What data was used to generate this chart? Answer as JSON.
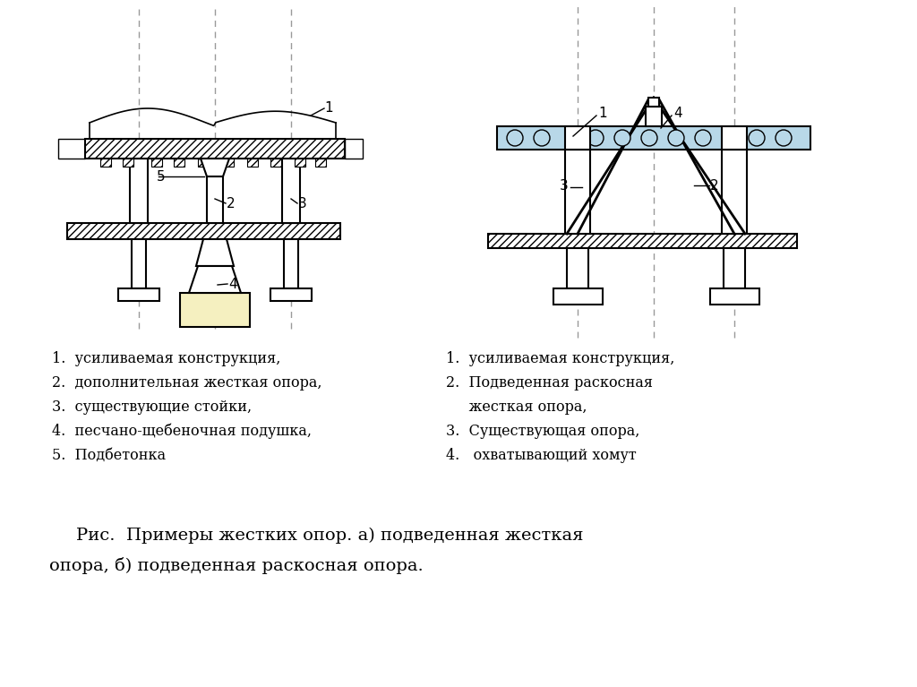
{
  "bg_color": "#ffffff",
  "cyan_beam_color": "#b8d8e8",
  "sand_color": "#f5f0c0",
  "left_legend": [
    "1.  усиливаемая конструкция,",
    "2.  дополнительная жесткая опора,",
    "3.  существующие стойки,",
    "4.  песчано-щебеночная подушка,",
    "5.  Подбетонка"
  ],
  "right_legend_lines": [
    "1.  усиливаемая конструкция,",
    "2.  Подведенная раскосная",
    "     жесткая опора,",
    "3.  Существующая опора,",
    "4.   охватывающий хомут"
  ],
  "caption_line1": "Рис.  Примеры жестких опор. а) подведенная жесткая",
  "caption_line2": "опора, б) подведенная раскосная опора."
}
